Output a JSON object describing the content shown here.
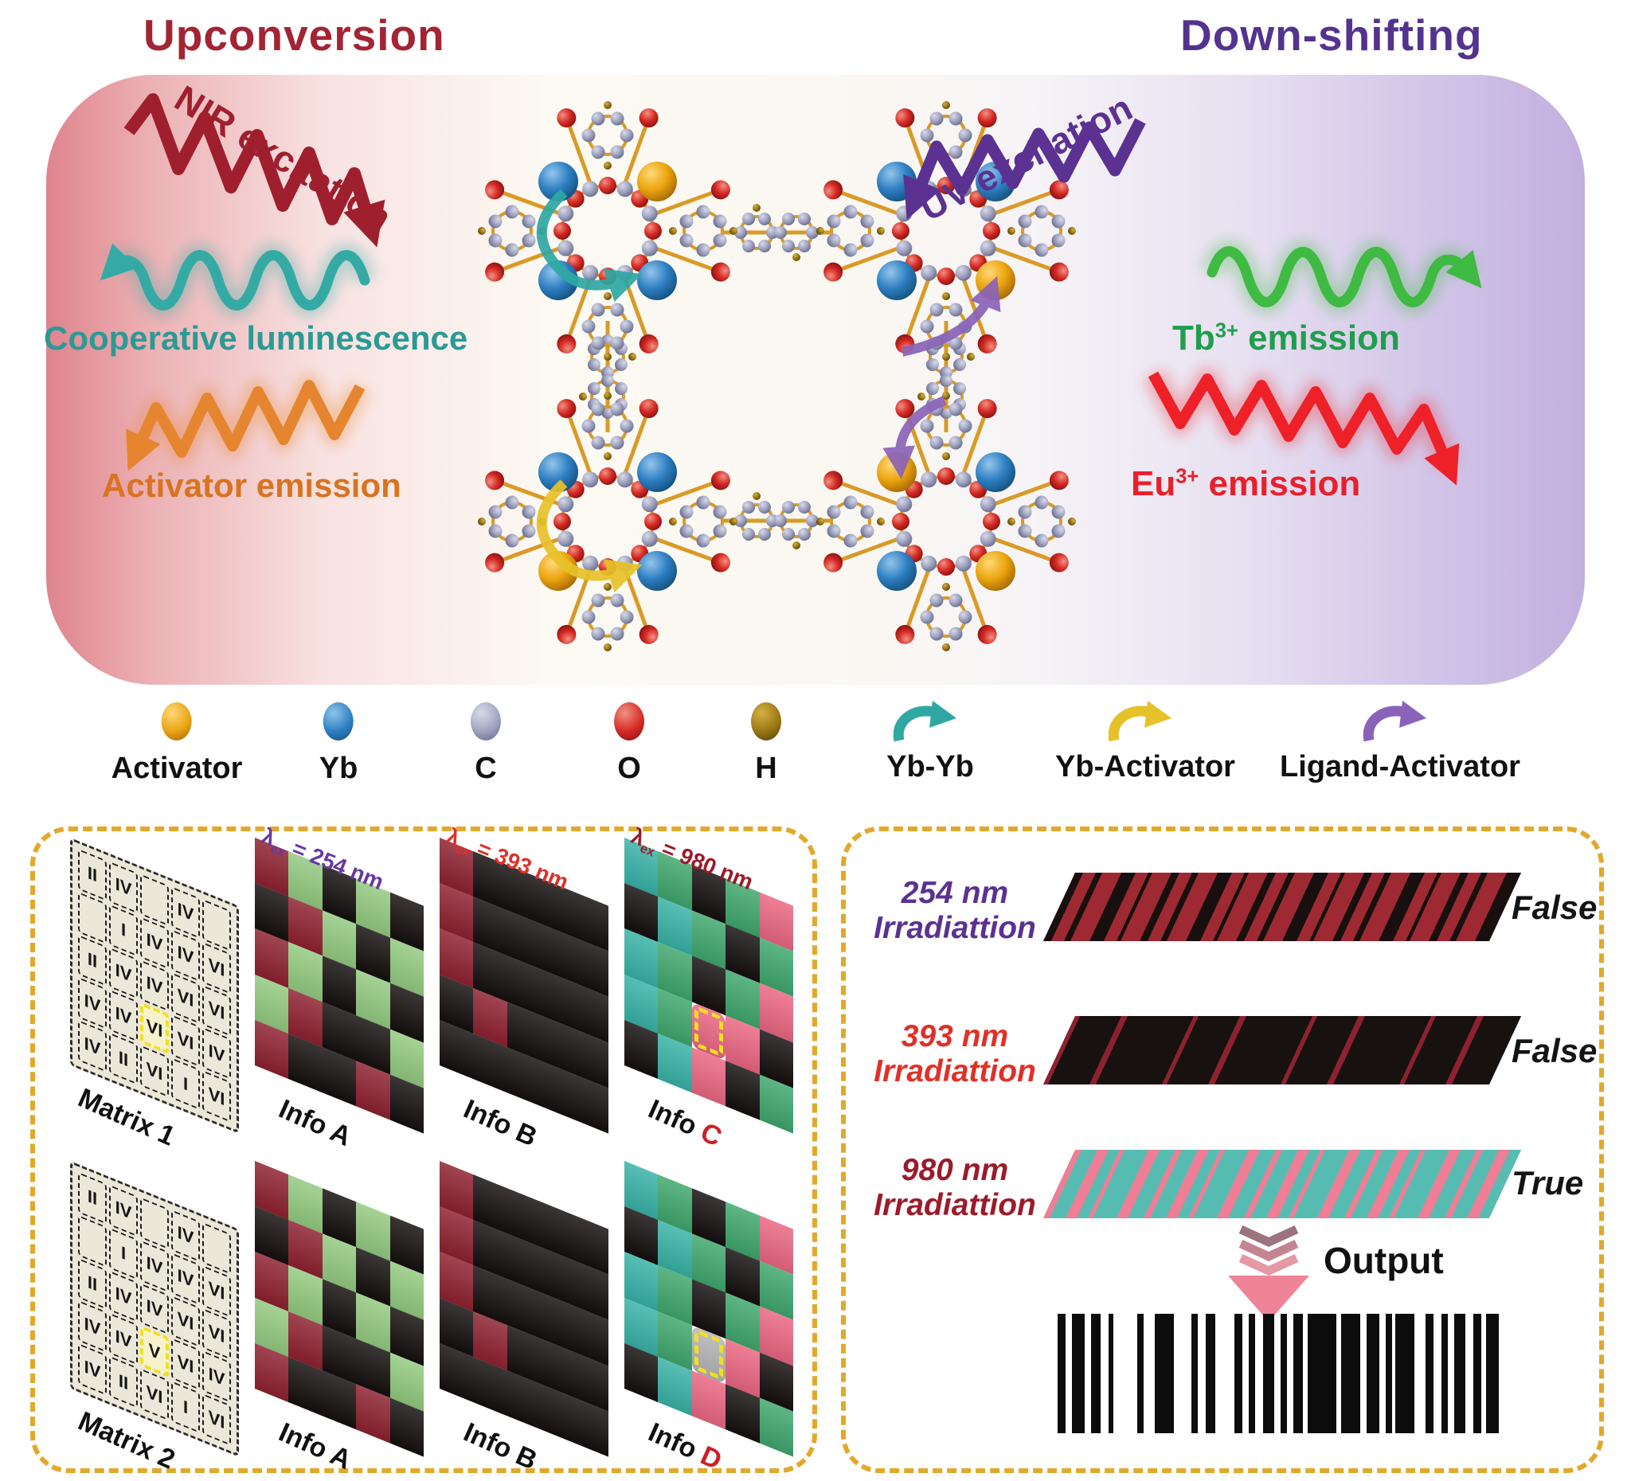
{
  "header": {
    "left_title": "Upconversion",
    "right_title": "Down-shifting"
  },
  "upconversion": {
    "excitation": "NIR excitation",
    "coop": "Cooperative luminescence",
    "activator": "Activator emission"
  },
  "downshifting": {
    "excitation": "UV excitation",
    "tb_base": "Tb",
    "tb_sup": "3+",
    "tb_rest": " emission",
    "eu_base": "Eu",
    "eu_sup": "3+",
    "eu_rest": " emission"
  },
  "legend": {
    "atoms": [
      {
        "label": "Activator",
        "color": "#eaa315"
      },
      {
        "label": "Yb",
        "color": "#2e7fc2"
      },
      {
        "label": "C",
        "color": "#9fa3c0"
      },
      {
        "label": "O",
        "color": "#d42a24"
      },
      {
        "label": "H",
        "color": "#9a7714"
      }
    ],
    "bonds": [
      {
        "label": "Yb-Yb",
        "color": "#2fa8a4"
      },
      {
        "label": "Yb-Activator",
        "color": "#e5c229"
      },
      {
        "label": "Ligand-Activator",
        "color": "#8a63b8"
      }
    ]
  },
  "left_panel": {
    "matrix1": {
      "label": "Matrix 1",
      "cells": [
        [
          "II",
          "IV",
          "",
          "IV",
          ""
        ],
        [
          "",
          "I",
          "IV",
          "IV",
          "VI"
        ],
        [
          "II",
          "IV",
          "IV",
          "VI",
          "VI"
        ],
        [
          "IV",
          "IV",
          "VI",
          "VI",
          "IV"
        ],
        [
          "IV",
          "II",
          "VI",
          "I",
          "VI"
        ]
      ],
      "highlight": {
        "row": 3,
        "col": 2,
        "value": "VI"
      }
    },
    "matrix2": {
      "label": "Matrix 2",
      "cells": [
        [
          "II",
          "IV",
          "",
          "IV",
          ""
        ],
        [
          "",
          "I",
          "IV",
          "IV",
          "VI"
        ],
        [
          "II",
          "IV",
          "IV",
          "VI",
          "VI"
        ],
        [
          "IV",
          "IV",
          "V",
          "VI",
          "IV"
        ],
        [
          "IV",
          "II",
          "VI",
          "I",
          "VI"
        ]
      ],
      "highlight": {
        "row": 3,
        "col": 2,
        "value": "V"
      }
    },
    "info_a1": {
      "label": "Info A",
      "lambda": "λ",
      "lambda_sub": "ex",
      "lambda_rest": " = 254 nm",
      "lambda_color": "#6838a0",
      "cells": [
        [
          "R",
          "G",
          "K",
          "G",
          "K"
        ],
        [
          "K",
          "R",
          "G",
          "K",
          "G"
        ],
        [
          "R",
          "G",
          "K",
          "G",
          "K"
        ],
        [
          "G",
          "R",
          "K",
          "K",
          "G"
        ],
        [
          "R",
          "K",
          "K",
          "R",
          "K"
        ]
      ]
    },
    "info_b1": {
      "label": "Info B",
      "lambda": "λ",
      "lambda_sub": "ex",
      "lambda_rest": " = 393 nm",
      "lambda_color": "#e03028",
      "cells": [
        [
          "R",
          "K",
          "K",
          "K",
          "K"
        ],
        [
          "R",
          "K",
          "K",
          "K",
          "K"
        ],
        [
          "R",
          "K",
          "K",
          "K",
          "K"
        ],
        [
          "K",
          "R",
          "K",
          "K",
          "K"
        ],
        [
          "K",
          "K",
          "K",
          "K",
          "K"
        ]
      ]
    },
    "info_c": {
      "label_base": "Info ",
      "label_letter": "C",
      "lambda": "λ",
      "lambda_sub": "ex",
      "lambda_rest": " = 980 nm",
      "lambda_color": "#9c1b2a",
      "cells": [
        [
          "T",
          "N",
          "K",
          "N",
          "P"
        ],
        [
          "K",
          "T",
          "N",
          "K",
          "N"
        ],
        [
          "T",
          "N",
          "K",
          "N",
          "P"
        ],
        [
          "T",
          "N",
          "P",
          "P",
          "K"
        ],
        [
          "K",
          "T",
          "P",
          "K",
          "N"
        ]
      ],
      "highlight": {
        "row": 3,
        "col": 2
      }
    },
    "info_a2": {
      "label": "Info A",
      "cells": [
        [
          "R",
          "G",
          "K",
          "G",
          "K"
        ],
        [
          "K",
          "R",
          "G",
          "K",
          "G"
        ],
        [
          "R",
          "G",
          "K",
          "G",
          "K"
        ],
        [
          "G",
          "R",
          "K",
          "K",
          "G"
        ],
        [
          "R",
          "K",
          "K",
          "R",
          "K"
        ]
      ]
    },
    "info_b2": {
      "label": "Info B",
      "cells": [
        [
          "R",
          "K",
          "K",
          "K",
          "K"
        ],
        [
          "R",
          "K",
          "K",
          "K",
          "K"
        ],
        [
          "R",
          "K",
          "K",
          "K",
          "K"
        ],
        [
          "K",
          "R",
          "K",
          "K",
          "K"
        ],
        [
          "K",
          "K",
          "K",
          "K",
          "K"
        ]
      ]
    },
    "info_d": {
      "label_base": "Info ",
      "label_letter": "D",
      "cells": [
        [
          "T",
          "N",
          "K",
          "N",
          "P"
        ],
        [
          "K",
          "T",
          "N",
          "K",
          "N"
        ],
        [
          "T",
          "N",
          "K",
          "N",
          "P"
        ],
        [
          "T",
          "N",
          "Y",
          "P",
          "K"
        ],
        [
          "K",
          "T",
          "P",
          "K",
          "N"
        ]
      ],
      "highlight": {
        "row": 3,
        "col": 2
      }
    }
  },
  "right_panel": {
    "rows": [
      {
        "line1": "254 nm",
        "line2": "Irradiattion",
        "result": "False",
        "label_color": "#5b3191"
      },
      {
        "line1": "393 nm",
        "line2": "Irradiattion",
        "result": "False",
        "label_color": "#e03028"
      },
      {
        "line1": "980 nm",
        "line2": "Irradiattion",
        "result": "True",
        "label_color": "#9c1b2a"
      }
    ],
    "output_label": "Output"
  },
  "colors": {
    "upconversion_red": "#a32433",
    "downshift_purple": "#54338f",
    "nir_arrow": "#9f1f2e",
    "uv_arrow": "#5b3191",
    "coop_teal": "#2a9a94",
    "activator_orange": "#e5852f",
    "tb_green": "#3fba43",
    "eu_red": "#ee2028",
    "bond_gold": "#d99a26",
    "dashed_border_gold": "#e3a82b",
    "info_darkred": "#8e2130",
    "info_green": "#93ca80",
    "info_black": "#15100f",
    "info_teal": "#38b2a7",
    "info_mid_green": "#3fa76d",
    "info_pink": "#ea6682",
    "highlight_yellow": "#f2df1f",
    "output_arrow_pink": "#ef8498"
  }
}
